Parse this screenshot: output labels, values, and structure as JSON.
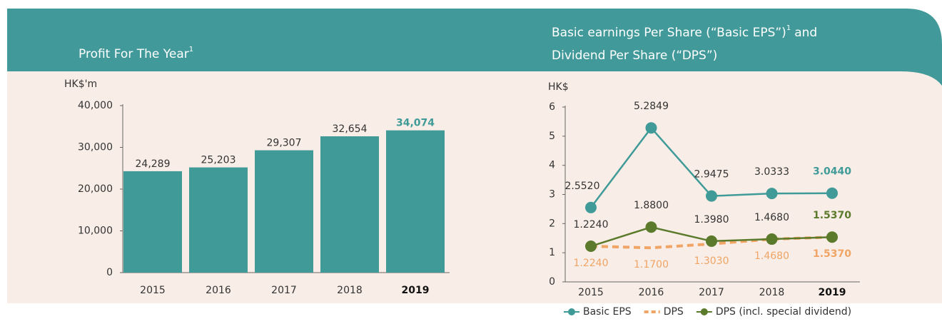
{
  "chart_data": [
    {
      "type": "bar",
      "title": "Profit For The Year",
      "title_footnote": "1",
      "y_label": "HK$'m",
      "categories": [
        "2015",
        "2016",
        "2017",
        "2018",
        "2019"
      ],
      "values": [
        24289,
        25203,
        29307,
        32654,
        34074
      ],
      "value_labels": [
        "24,289",
        "25,203",
        "29,307",
        "32,654",
        "34,074"
      ],
      "color": "#3f9a98",
      "highlight_color": "#3f9a98",
      "ylim": [
        0,
        40000
      ],
      "yticks": [
        0,
        {
          "value": 10000,
          "label": "10,000"
        },
        {
          "value": 20000,
          "label": "20,000"
        },
        {
          "value": 30000,
          "label": "30,000"
        },
        {
          "value": 40000,
          "label": "40,000"
        }
      ]
    },
    {
      "type": "line",
      "title": [
        "Basic earnings Per Share (“Basic EPS”)",
        "and",
        "Dividend Per Share (“DPS”)"
      ],
      "title_footnote": "1",
      "y_label": "HK$",
      "categories": [
        "2015",
        "2016",
        "2017",
        "2018",
        "2019"
      ],
      "series": [
        {
          "name": "Basic EPS",
          "color": "#3f9a98",
          "dashed": false,
          "labels_below": false,
          "values": [
            2.552,
            5.2849,
            2.9475,
            3.0333,
            3.044
          ],
          "value_labels": [
            "2.5520",
            "5.2849",
            "2.9475",
            "3.0333",
            "3.0440"
          ]
        },
        {
          "name": "DPS",
          "color": "#f0a465",
          "dashed": true,
          "labels_below": true,
          "values": [
            1.224,
            1.17,
            1.303,
            1.468,
            1.537
          ],
          "value_labels": [
            "1.2240",
            "1.1700",
            "1.3030",
            "1.4680",
            "1.5370"
          ]
        },
        {
          "name": "DPS (incl. special dividend)",
          "color": "#5b7a2b",
          "dashed": false,
          "labels_below": false,
          "values": [
            1.224,
            1.88,
            1.398,
            1.468,
            1.537
          ],
          "value_labels": [
            "1.2240",
            "1.8800",
            "1.3980",
            "1.4680",
            "1.5370"
          ]
        }
      ],
      "ylim": [
        0,
        6
      ],
      "yticks": [
        0,
        1,
        2,
        3,
        4,
        5,
        6
      ]
    }
  ]
}
